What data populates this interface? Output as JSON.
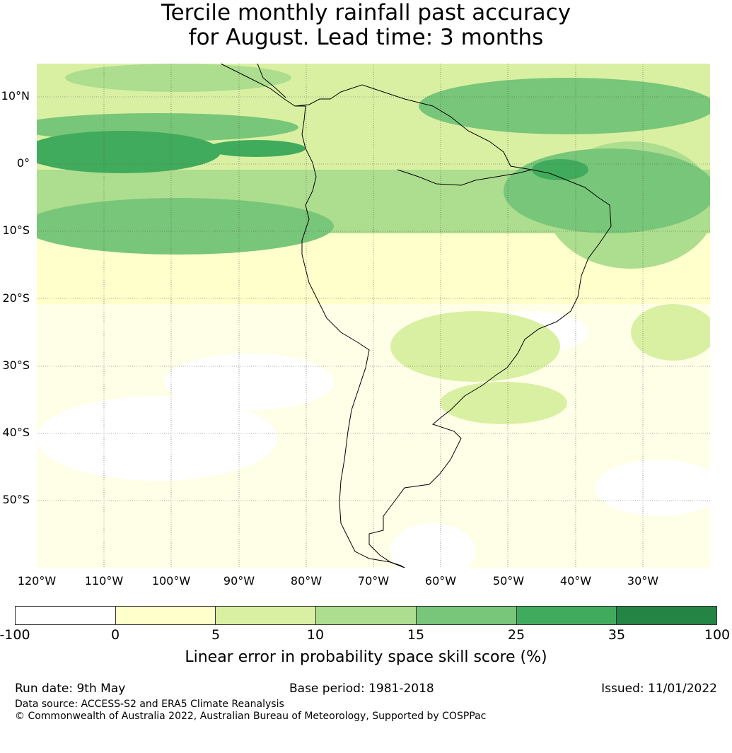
{
  "title": {
    "line1": "Tercile monthly rainfall past accuracy",
    "line2": "for August. Lead time: 3 months"
  },
  "map": {
    "lat_labels": [
      "10°N",
      "0°",
      "10°S",
      "20°S",
      "30°S",
      "40°S",
      "50°S"
    ],
    "lon_labels": [
      "120°W",
      "110°W",
      "100°W",
      "90°W",
      "80°W",
      "70°W",
      "60°W",
      "50°W",
      "40°W",
      "30°W"
    ],
    "extent": {
      "lon_min": -125,
      "lon_max": -25,
      "lat_min": -60,
      "lat_max": 15
    }
  },
  "colorbar": {
    "colors": [
      "#ffffff",
      "#ffffcc",
      "#d9f0a3",
      "#addd8e",
      "#78c679",
      "#41ab5d",
      "#238443"
    ],
    "ticks": [
      "-100",
      "0",
      "5",
      "10",
      "15",
      "25",
      "35",
      "100"
    ],
    "label": "Linear error in probability space skill score (%)"
  },
  "footer": {
    "run_date": "Run date: 9th May",
    "base_period": "Base period: 1981-2018",
    "issued": "Issued: 11/01/2022",
    "data_source": "Data source: ACCESS-S2 and ERA5 Climate Reanalysis",
    "copyright": "© Commonwealth of Australia 2022, Australian Bureau of Meteorology, Supported by COSPPac"
  }
}
